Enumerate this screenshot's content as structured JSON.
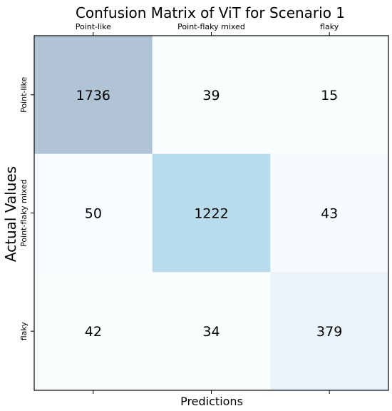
{
  "chart_data": {
    "type": "heatmap",
    "title": "Confusion Matrix of ViT for Scenario 1",
    "xlabel": "Predictions",
    "ylabel": "Actual Values",
    "x_categories": [
      "Point-like",
      "Point-flaky mixed",
      "flaky"
    ],
    "y_categories": [
      "Point-like",
      "Point-flaky mixed",
      "flaky"
    ],
    "matrix": [
      [
        1736,
        39,
        15
      ],
      [
        50,
        1222,
        43
      ],
      [
        42,
        34,
        379
      ]
    ],
    "cell_colors": [
      [
        "#b0c4d6",
        "#f8fdfe",
        "#f8fdfe"
      ],
      [
        "#f7fcfe",
        "#b8dcec",
        "#f6fbfe"
      ],
      [
        "#f8fdfe",
        "#f8fdfe",
        "#ebf3fa"
      ]
    ],
    "x_axis_position": "top",
    "grid": false
  }
}
